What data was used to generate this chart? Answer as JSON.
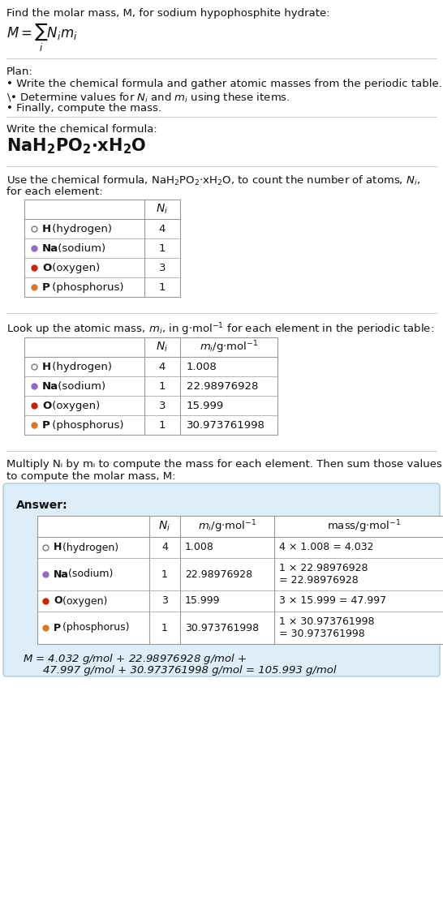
{
  "title_text": "Find the molar mass, M, for sodium hypophosphite hydrate:",
  "plan_header": "Plan:",
  "plan_bullets": [
    "• Write the chemical formula and gather atomic masses from the periodic table.",
    "• Determine values for Nᵢ and mᵢ using these items.",
    "• Finally, compute the mass."
  ],
  "section2_header": "Write the chemical formula:",
  "section3_header_line1": "Use the chemical formula, NaH₂PO₂·xH₂O, to count the number of atoms, Nᵢ,",
  "section3_header_line2": "for each element:",
  "table1_col_header": "Nᵢ",
  "table1_rows": [
    [
      "H",
      "(hydrogen)",
      "4"
    ],
    [
      "Na",
      "(sodium)",
      "1"
    ],
    [
      "O",
      "(oxygen)",
      "3"
    ],
    [
      "P",
      "(phosphorus)",
      "1"
    ]
  ],
  "table1_dot_colors": [
    "none",
    "#9966cc",
    "#cc2200",
    "#dd7722"
  ],
  "section4_header": "Look up the atomic mass, mᵢ, in g·mol⁻¹ for each element in the periodic table:",
  "table2_rows": [
    [
      "H",
      "(hydrogen)",
      "4",
      "1.008"
    ],
    [
      "Na",
      "(sodium)",
      "1",
      "22.98976928"
    ],
    [
      "O",
      "(oxygen)",
      "3",
      "15.999"
    ],
    [
      "P",
      "(phosphorus)",
      "1",
      "30.973761998"
    ]
  ],
  "table2_dot_colors": [
    "none",
    "#9966cc",
    "#cc2200",
    "#dd7722"
  ],
  "section5_header_line1": "Multiply Nᵢ by mᵢ to compute the mass for each element. Then sum those values",
  "section5_header_line2": "to compute the molar mass, M:",
  "answer_label": "Answer:",
  "table3_rows": [
    [
      "H",
      "(hydrogen)",
      "4",
      "1.008",
      "4 × 1.008 = 4.032"
    ],
    [
      "Na",
      "(sodium)",
      "1",
      "22.98976928",
      "1 × 22.98976928\n= 22.98976928"
    ],
    [
      "O",
      "(oxygen)",
      "3",
      "15.999",
      "3 × 15.999 = 47.997"
    ],
    [
      "P",
      "(phosphorus)",
      "1",
      "30.973761998",
      "1 × 30.973761998\n= 30.973761998"
    ]
  ],
  "table3_dot_colors": [
    "none",
    "#9966cc",
    "#cc2200",
    "#dd7722"
  ],
  "final_line1": "M = 4.032 g/mol + 22.98976928 g/mol +",
  "final_line2": "    47.997 g/mol + 30.973761998 g/mol = 105.993 g/mol",
  "bg_color": "#ffffff",
  "answer_bg": "#deeef8",
  "text_color": "#111111",
  "divider_color": "#bbbbbb",
  "table_border_color": "#999999"
}
